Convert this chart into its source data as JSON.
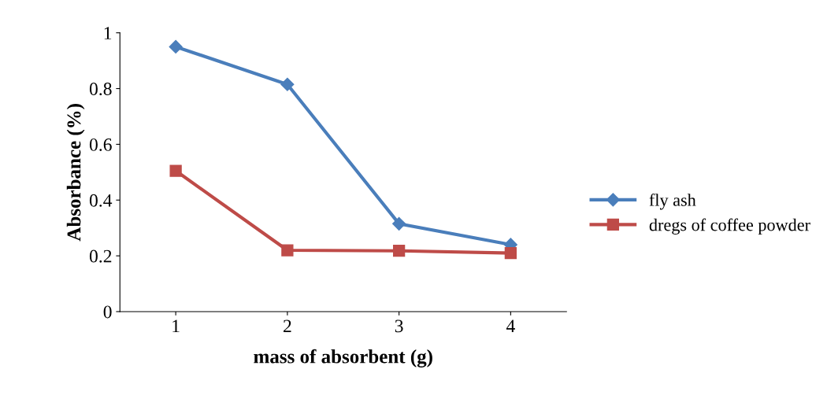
{
  "chart_data": {
    "type": "line",
    "xlabel": "mass of absorbent (g)",
    "ylabel": "Absorbance (%)",
    "categories": [
      "1",
      "2",
      "3",
      "4"
    ],
    "series": [
      {
        "name": "fly ash",
        "color": "#4a7ebb",
        "values": [
          0.95,
          0.815,
          0.315,
          0.24
        ],
        "marker": "diamond"
      },
      {
        "name": "dregs of coffee powder",
        "color": "#be4b48",
        "values": [
          0.505,
          0.22,
          0.218,
          0.21
        ],
        "marker": "square"
      }
    ],
    "ylim": [
      0,
      1
    ],
    "yticks": [
      0,
      0.2,
      0.4,
      0.6,
      0.8,
      1
    ],
    "grid": false,
    "legend": "right",
    "line_style": "solid"
  }
}
